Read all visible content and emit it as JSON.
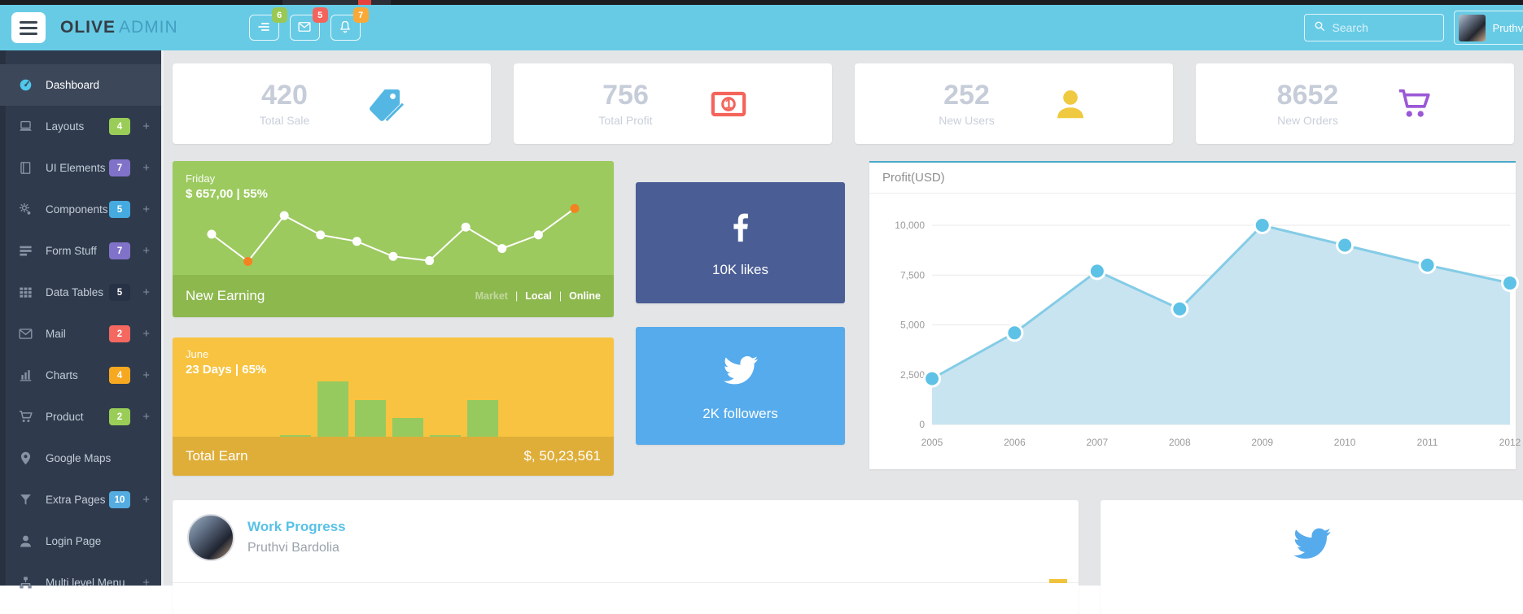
{
  "navbar": {
    "brand": {
      "primary": "OLIVE",
      "secondary": "ADMIN"
    },
    "shortcuts": [
      {
        "name": "tasks",
        "icon": "list-icon",
        "badge": "6",
        "badge_color": "#99c954"
      },
      {
        "name": "messages",
        "icon": "mail-icon",
        "badge": "5",
        "badge_color": "#f4645c"
      },
      {
        "name": "notifications",
        "icon": "bell-icon",
        "badge": "7",
        "badge_color": "#f9a938"
      }
    ],
    "search": {
      "placeholder": "Search"
    },
    "user": {
      "name": "Pruthvi"
    }
  },
  "sidebar": {
    "items": [
      {
        "label": "Dashboard",
        "icon": "dashboard-icon",
        "active": true
      },
      {
        "label": "Layouts",
        "icon": "laptop-icon",
        "badge": "4",
        "badge_color": "#9acd57",
        "expandable": true
      },
      {
        "label": "UI Elements",
        "icon": "book-icon",
        "badge": "7",
        "badge_color": "#8172c9",
        "expandable": true
      },
      {
        "label": "Components",
        "icon": "gears-icon",
        "badge": "5",
        "badge_color": "#45aae0",
        "expandable": true
      },
      {
        "label": "Form Stuff",
        "icon": "form-list-icon",
        "badge": "7",
        "badge_color": "#8172c9",
        "expandable": true
      },
      {
        "label": "Data Tables",
        "icon": "grid-icon",
        "badge": "5",
        "badge_color": "#273246",
        "expandable": true
      },
      {
        "label": "Mail",
        "icon": "mail-icon",
        "badge": "2",
        "badge_color": "#f4685f",
        "expandable": true
      },
      {
        "label": "Charts",
        "icon": "bar-chart-icon",
        "badge": "4",
        "badge_color": "#f6a821",
        "expandable": true
      },
      {
        "label": "Product",
        "icon": "cart-icon",
        "badge": "2",
        "badge_color": "#9acd57",
        "expandable": true
      },
      {
        "label": "Google Maps",
        "icon": "map-pin-icon"
      },
      {
        "label": "Extra Pages",
        "icon": "funnel-icon",
        "badge": "10",
        "badge_color": "#54ace0",
        "expandable": true
      },
      {
        "label": "Login Page",
        "icon": "user-icon"
      },
      {
        "label": "Multi level Menu",
        "icon": "sitemap-icon",
        "expandable": true
      }
    ]
  },
  "stats": [
    {
      "value": "420",
      "label": "Total Sale",
      "icon": "tags-icon",
      "icon_color": "#54b7e3"
    },
    {
      "value": "756",
      "label": "Total Profit",
      "icon": "banknote-icon",
      "icon_color": "#f4645c"
    },
    {
      "value": "252",
      "label": "New Users",
      "icon": "person-icon",
      "icon_color": "#efc93f"
    },
    {
      "value": "8652",
      "label": "New Orders",
      "icon": "cart-icon",
      "icon_color": "#9b59d6"
    }
  ],
  "earning_card": {
    "period": "Friday",
    "stat": "$ 657,00 | 55%",
    "title": "New Earning",
    "filters": [
      {
        "label": "Market",
        "active": false
      },
      {
        "label": "Local",
        "active": true
      },
      {
        "label": "Online",
        "active": true
      }
    ],
    "colors": {
      "bg": "#9cca5f",
      "footer": "#8db84e",
      "line": "#ffffff",
      "highlight": "#f58220"
    },
    "chart": {
      "type": "line",
      "values": [
        50,
        12,
        76,
        49,
        40,
        19,
        13,
        60,
        30,
        49,
        86
      ],
      "highlight_indices": [
        1,
        10
      ]
    }
  },
  "earn_card": {
    "period": "June",
    "stat": "23 Days | 65%",
    "title": "Total Earn",
    "amount": "$, 50,23,561",
    "colors": {
      "bg": "#f8c340",
      "footer": "#dfae39",
      "bar": "#96ca5e"
    },
    "chart": {
      "type": "bar",
      "values_pct": [
        3,
        100,
        66,
        34,
        3,
        66
      ]
    }
  },
  "social_cards": [
    {
      "network": "facebook",
      "icon": "facebook-icon",
      "stat": "10K likes",
      "bg": "#4a5d95"
    },
    {
      "network": "twitter",
      "icon": "twitter-icon",
      "stat": "2K followers",
      "bg": "#56abec"
    }
  ],
  "chart_data": {
    "type": "area",
    "title": "Profit(USD)",
    "x": [
      "2005",
      "2006",
      "2007",
      "2008",
      "2009",
      "2010",
      "2011",
      "2012"
    ],
    "series": [
      {
        "name": "Profit",
        "values": [
          2300,
          4600,
          7700,
          5800,
          10000,
          9000,
          8000,
          7100
        ]
      }
    ],
    "ylim": [
      0,
      10000
    ],
    "yticks": [
      "0",
      "2,500",
      "5,000",
      "7,500",
      "10,000"
    ],
    "grid": true,
    "legend": false,
    "colors": {
      "fill": "#c9e4f1",
      "line": "#84cce6",
      "dot": "#5ec2e6",
      "top_border": "#4aa9c8"
    }
  },
  "work_progress": {
    "title": "Work Progress",
    "name": "Pruthvi Bardolia"
  },
  "twitter_panel": {
    "icon": "twitter-icon",
    "color": "#56abec"
  }
}
